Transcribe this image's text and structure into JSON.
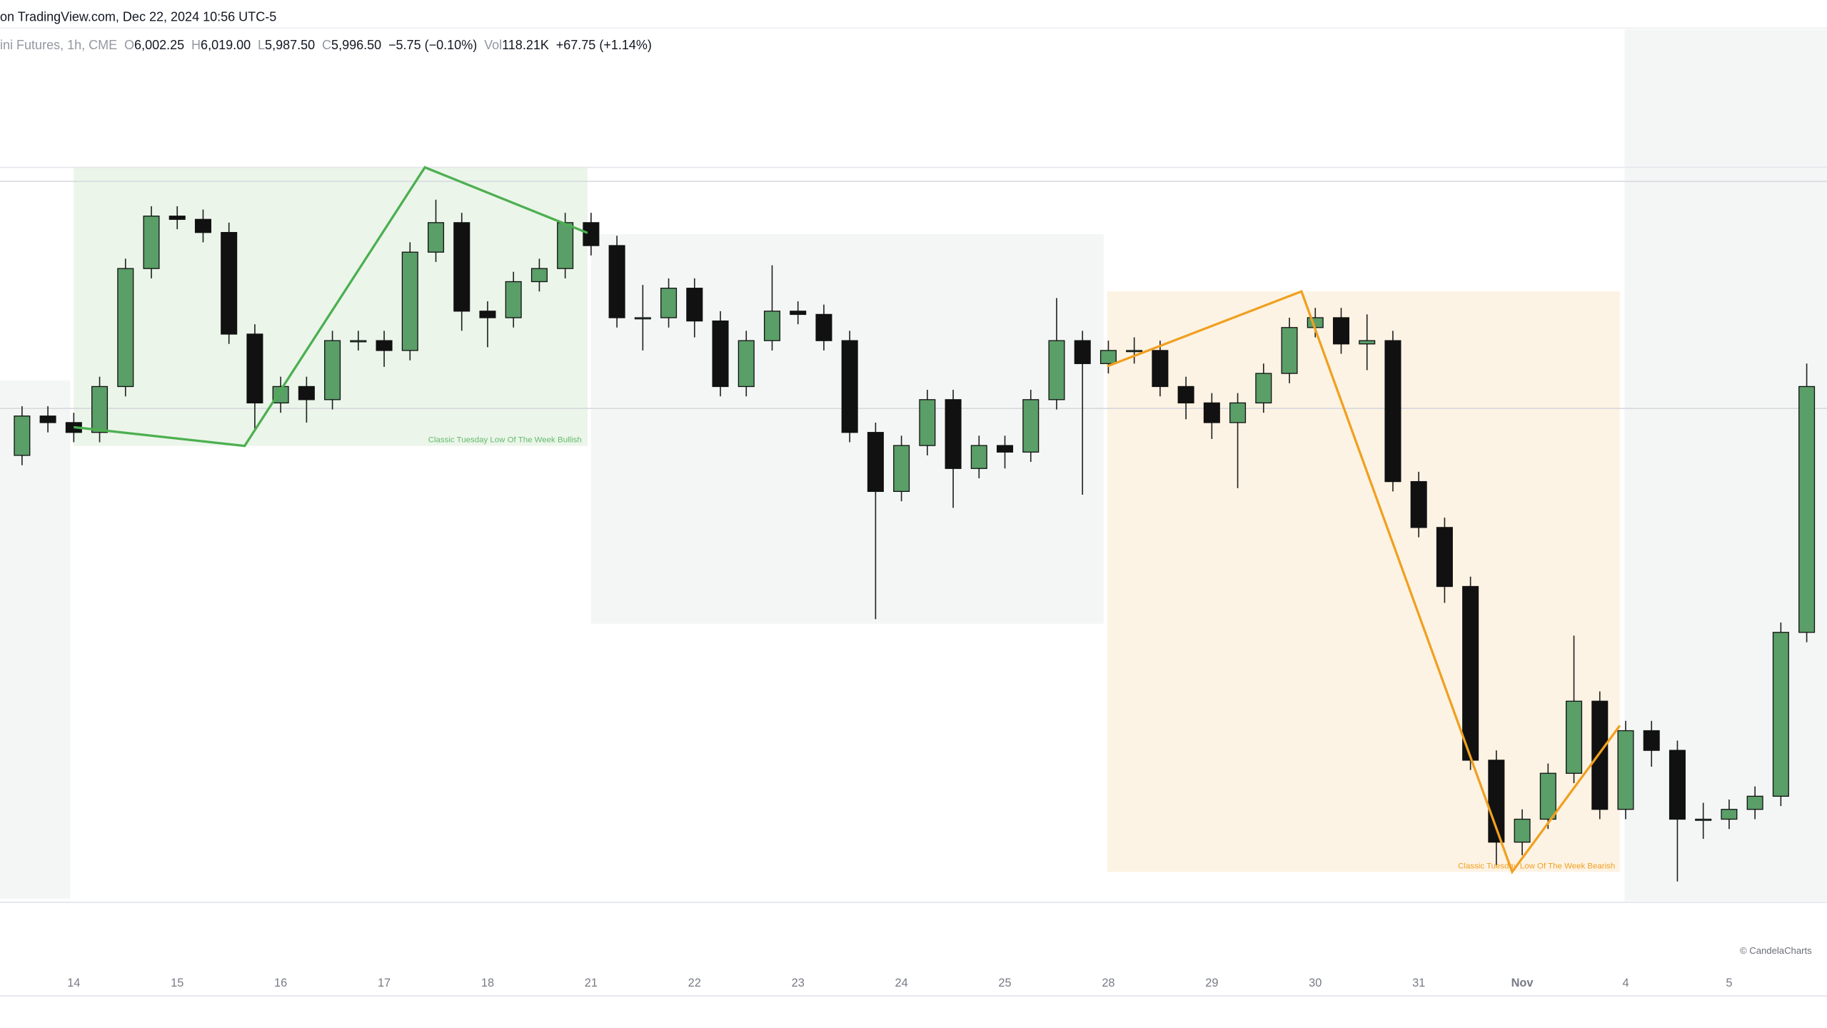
{
  "header": {
    "source": "on TradingView.com, Dec 22, 2024 10:56 UTC-5",
    "symbol": "ini Futures, 1h, CME",
    "ohlc": [
      {
        "label": "O",
        "value": "6,002.25"
      },
      {
        "label": "H",
        "value": "6,019.00"
      },
      {
        "label": "L",
        "value": "5,987.50"
      },
      {
        "label": "C",
        "value": "5,996.50"
      }
    ],
    "change": "−5.75 (−0.10%)",
    "volume_label": "Vol",
    "volume": "118.21K",
    "volume_change": "+67.75 (+1.14%)"
  },
  "chart_data": {
    "type": "candlestick",
    "x": [
      -0.5,
      -0.25,
      0,
      0.25,
      0.5,
      0.75,
      1,
      1.25,
      1.5,
      1.75,
      2,
      2.25,
      2.5,
      2.75,
      3,
      3.25,
      3.5,
      3.75,
      4,
      4.25,
      4.5,
      4.75,
      5,
      5.25,
      5.5,
      5.75,
      6,
      6.25,
      6.5,
      6.75,
      7,
      7.25,
      7.5,
      7.75,
      8,
      8.25,
      8.5,
      8.75,
      9,
      9.25,
      9.5,
      9.75,
      10,
      10.25,
      10.5,
      10.75,
      11,
      11.25,
      11.5,
      11.75,
      12,
      12.25,
      12.5,
      12.75,
      13,
      13.25,
      13.5,
      13.75,
      14,
      14.25,
      14.5,
      14.75,
      15,
      15.25,
      15.5,
      15.75,
      16,
      16.25,
      16.5,
      16.75
    ],
    "open": [
      5830,
      5842,
      5840,
      5837,
      5851,
      5887,
      5903,
      5902,
      5898,
      5867,
      5846,
      5851,
      5847,
      5865,
      5865,
      5862,
      5892,
      5901,
      5874,
      5872,
      5883,
      5887,
      5901,
      5894,
      5872,
      5872,
      5881,
      5871,
      5851,
      5865,
      5874,
      5873,
      5865,
      5837,
      5819,
      5833,
      5847,
      5826,
      5833,
      5831,
      5847,
      5865,
      5858,
      5862,
      5862,
      5851,
      5846,
      5840,
      5846,
      5855,
      5869,
      5872,
      5864,
      5865,
      5822,
      5808,
      5790,
      5737,
      5712,
      5719,
      5733,
      5755,
      5722,
      5746,
      5740,
      5719,
      5719,
      5722,
      5726,
      5776
    ],
    "high": [
      5845,
      5845,
      5843,
      5854,
      5890,
      5906,
      5906,
      5905,
      5901,
      5870,
      5854,
      5854,
      5868,
      5868,
      5868,
      5895,
      5908,
      5904,
      5877,
      5886,
      5890,
      5904,
      5904,
      5897,
      5882,
      5884,
      5884,
      5874,
      5868,
      5888,
      5877,
      5876,
      5868,
      5840,
      5836,
      5850,
      5850,
      5836,
      5836,
      5850,
      5878,
      5868,
      5865,
      5866,
      5865,
      5854,
      5849,
      5849,
      5858,
      5872,
      5875,
      5875,
      5873,
      5868,
      5825,
      5811,
      5793,
      5740,
      5722,
      5736,
      5775,
      5758,
      5749,
      5749,
      5743,
      5724,
      5725,
      5729,
      5779,
      5858
    ],
    "low": [
      5827,
      5837,
      5834,
      5834,
      5848,
      5884,
      5899,
      5895,
      5864,
      5838,
      5843,
      5840,
      5844,
      5862,
      5857,
      5859,
      5889,
      5868,
      5863,
      5869,
      5880,
      5884,
      5891,
      5869,
      5862,
      5869,
      5866,
      5848,
      5848,
      5862,
      5870,
      5862,
      5834,
      5780,
      5816,
      5830,
      5814,
      5823,
      5826,
      5828,
      5844,
      5818,
      5855,
      5858,
      5848,
      5841,
      5835,
      5820,
      5843,
      5852,
      5866,
      5861,
      5856,
      5819,
      5805,
      5785,
      5734,
      5705,
      5708,
      5716,
      5730,
      5719,
      5719,
      5735,
      5700,
      5713,
      5716,
      5719,
      5723,
      5773
    ],
    "close": [
      5842,
      5840,
      5837,
      5851,
      5887,
      5903,
      5902,
      5898,
      5867,
      5846,
      5851,
      5847,
      5865,
      5865,
      5862,
      5892,
      5901,
      5874,
      5872,
      5883,
      5887,
      5901,
      5894,
      5872,
      5872,
      5881,
      5871,
      5851,
      5865,
      5874,
      5873,
      5865,
      5837,
      5819,
      5833,
      5847,
      5826,
      5833,
      5831,
      5847,
      5865,
      5858,
      5862,
      5862,
      5851,
      5846,
      5840,
      5846,
      5855,
      5869,
      5872,
      5864,
      5865,
      5822,
      5808,
      5790,
      5737,
      5712,
      5719,
      5733,
      5755,
      5722,
      5746,
      5740,
      5719,
      5719,
      5722,
      5726,
      5776,
      5851
    ],
    "xlim": [
      -0.713,
      16.946
    ],
    "ylim": [
      5694,
      5960
    ],
    "xticks": [
      {
        "value": 0,
        "label": "14"
      },
      {
        "value": 1,
        "label": "15"
      },
      {
        "value": 2,
        "label": "16"
      },
      {
        "value": 3,
        "label": "17"
      },
      {
        "value": 4,
        "label": "18"
      },
      {
        "value": 5,
        "label": "21"
      },
      {
        "value": 6,
        "label": "22"
      },
      {
        "value": 7,
        "label": "23"
      },
      {
        "value": 8,
        "label": "24"
      },
      {
        "value": 9,
        "label": "25"
      },
      {
        "value": 10,
        "label": "28"
      },
      {
        "value": 11,
        "label": "29"
      },
      {
        "value": 12,
        "label": "30"
      },
      {
        "value": 13,
        "label": "31"
      },
      {
        "value": 14,
        "label": "Nov"
      },
      {
        "value": 15,
        "label": "4"
      },
      {
        "value": 16,
        "label": "5"
      }
    ],
    "up_color": "#5a9e68",
    "down_color": "#111111",
    "annotations": [
      "Classic Tuesday Low Of The Week Bullish",
      "Classic Tuesday Low Of The Week Bearish"
    ]
  },
  "watermark": "© CandelaCharts"
}
